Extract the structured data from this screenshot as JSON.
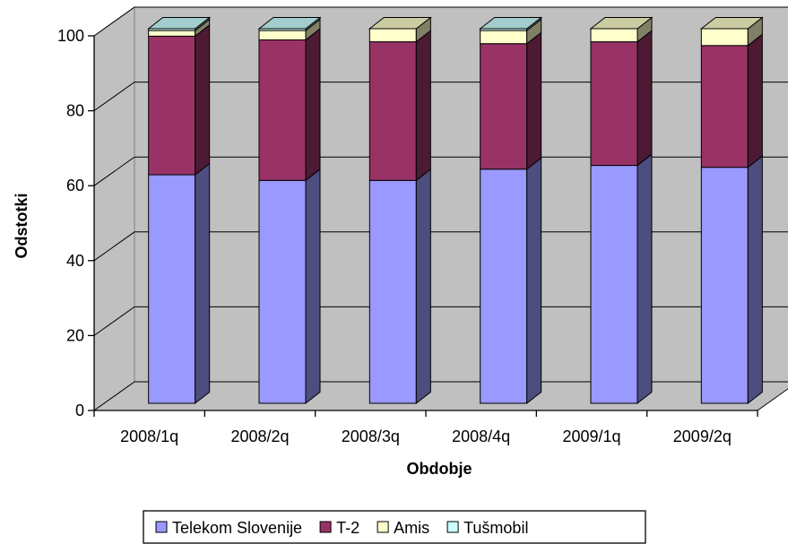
{
  "chart_data": {
    "type": "bar",
    "stacked": true,
    "three_d": true,
    "categories": [
      "2008/1q",
      "2008/2q",
      "2008/3q",
      "2008/4q",
      "2009/1q",
      "2009/2q"
    ],
    "series": [
      {
        "name": "Telekom Slovenije",
        "values": [
          61,
          59.5,
          59.5,
          62.5,
          63.5,
          63
        ],
        "color": "#9999ff"
      },
      {
        "name": "T-2",
        "values": [
          37,
          37.5,
          37,
          33.5,
          33,
          32.5
        ],
        "color": "#993366"
      },
      {
        "name": "Amis",
        "values": [
          1.5,
          2.5,
          3.5,
          3.5,
          3.5,
          4.5
        ],
        "color": "#ffffcc"
      },
      {
        "name": "Tušmobil",
        "values": [
          0.5,
          0.5,
          0,
          0.5,
          0,
          0
        ],
        "color": "#ccffff"
      }
    ],
    "title": "",
    "xlabel": "Obdobje",
    "ylabel": "Odstotki",
    "ylim": [
      0,
      100
    ],
    "yticks": [
      "0",
      "20",
      "40",
      "60",
      "80",
      "100"
    ],
    "grid": true,
    "legend_position": "bottom",
    "wall_color": "#c0c0c0"
  }
}
